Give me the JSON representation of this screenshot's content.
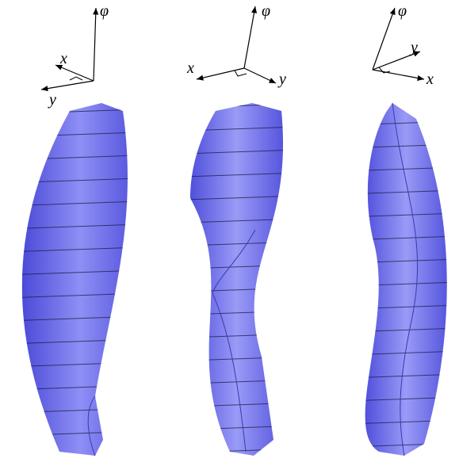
{
  "panels": [
    {
      "labels": {
        "up": "φ",
        "x": "x",
        "y": "y"
      }
    },
    {
      "labels": {
        "up": "φ",
        "x": "x",
        "y": "y"
      }
    },
    {
      "labels": {
        "up": "φ",
        "y": "y",
        "x": "x"
      }
    }
  ]
}
